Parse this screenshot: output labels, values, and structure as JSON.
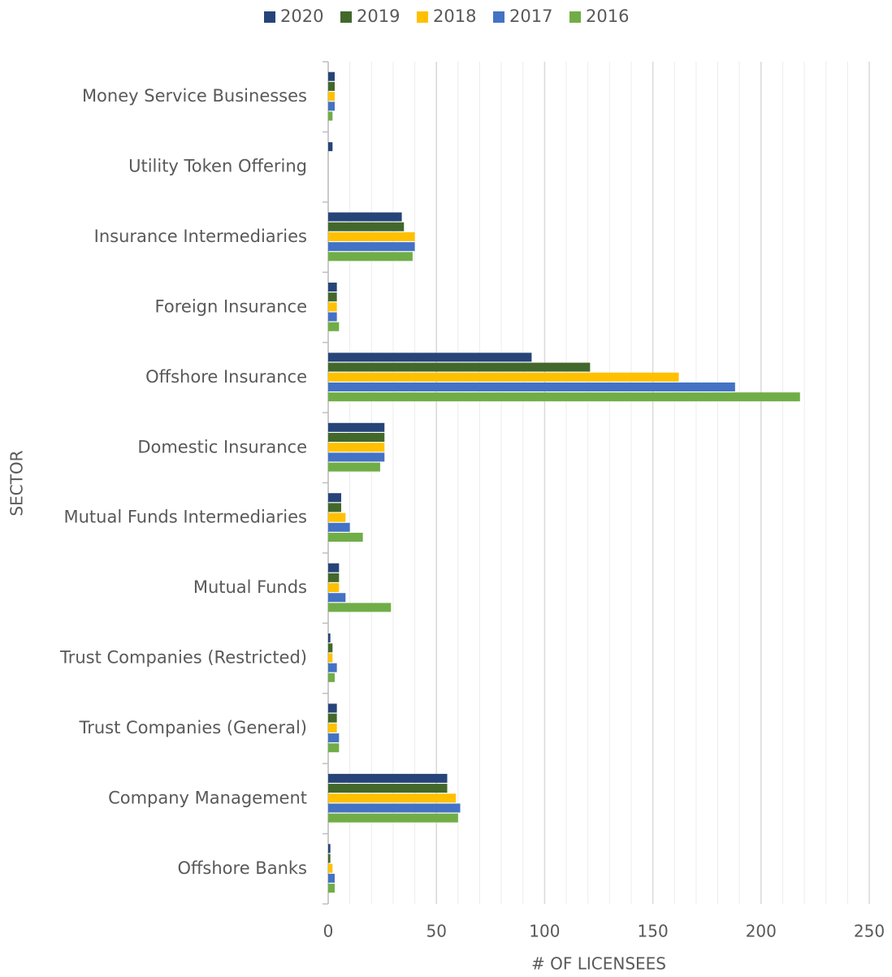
{
  "chart_data": {
    "type": "barh",
    "x_label": "# OF LICENSEES",
    "y_label": "SECTOR",
    "categories": [
      "Money Service Businesses",
      "Utility Token Offering",
      "Insurance Intermediaries",
      "Foreign Insurance",
      "Offshore Insurance",
      "Domestic Insurance",
      "Mutual Funds Intermediaries",
      "Mutual Funds",
      "Trust Companies (Restricted)",
      "Trust Companies (General)",
      "Company Management",
      "Offshore Banks"
    ],
    "series": [
      {
        "name": "2020",
        "color": "#264478",
        "values": [
          3,
          2,
          34,
          4,
          94,
          26,
          6,
          5,
          1,
          4,
          55,
          1
        ]
      },
      {
        "name": "2019",
        "color": "#43682b",
        "values": [
          3,
          0,
          35,
          4,
          121,
          26,
          6,
          5,
          2,
          4,
          55,
          1
        ]
      },
      {
        "name": "2018",
        "color": "#ffc000",
        "values": [
          3,
          0,
          40,
          4,
          162,
          26,
          8,
          5,
          2,
          4,
          59,
          2
        ]
      },
      {
        "name": "2017",
        "color": "#4472c4",
        "values": [
          3,
          0,
          40,
          4,
          188,
          26,
          10,
          8,
          4,
          5,
          61,
          3
        ]
      },
      {
        "name": "2016",
        "color": "#70ad47",
        "values": [
          2,
          0,
          39,
          5,
          218,
          24,
          16,
          29,
          3,
          5,
          60,
          3
        ]
      }
    ],
    "xlim": [
      0,
      250
    ],
    "xticks": [
      0,
      50,
      100,
      150,
      200,
      250
    ],
    "minor_gridlines": [
      10,
      20,
      30,
      40,
      60,
      70,
      80,
      90,
      110,
      120,
      130,
      140,
      160,
      170,
      180,
      190,
      210,
      220,
      230,
      240
    ],
    "grid": true,
    "legend": "top"
  }
}
